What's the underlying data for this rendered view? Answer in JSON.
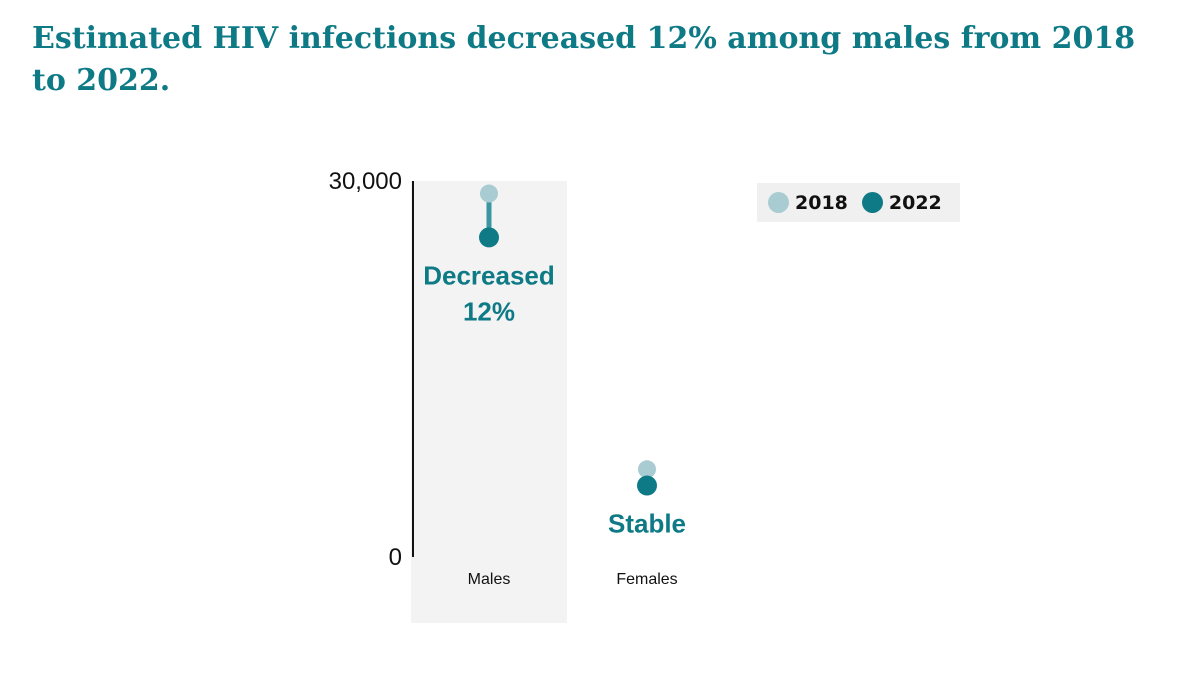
{
  "title": "Estimated HIV infections decreased 12% among males from 2018 to 2022.",
  "colors": {
    "title": "#0e7a86",
    "series_2018": "#a8ccd1",
    "series_2022": "#0e7a86",
    "connector": "#3a96a0",
    "highlight_band": "#f3f3f3",
    "axis": "#111111"
  },
  "chart_data": {
    "type": "dot-dumbbell",
    "title": "Estimated HIV infections decreased 12% among males from 2018 to 2022.",
    "xlabel": "",
    "ylabel": "",
    "ylim": [
      0,
      30000
    ],
    "y_ticks": [
      "0",
      "30,000"
    ],
    "y_tick_values": [
      0,
      30000
    ],
    "categories": [
      "Males",
      "Females"
    ],
    "series": [
      {
        "name": "2018",
        "values": [
          29000,
          7000
        ]
      },
      {
        "name": "2022",
        "values": [
          25500,
          5700
        ]
      }
    ],
    "annotations": [
      {
        "category": "Males",
        "lines": [
          "Decreased",
          "12%"
        ]
      },
      {
        "category": "Females",
        "lines": [
          "Stable"
        ]
      }
    ],
    "highlighted_category": "Males",
    "legend": {
      "position": "top-right",
      "entries": [
        "2018",
        "2022"
      ]
    }
  }
}
